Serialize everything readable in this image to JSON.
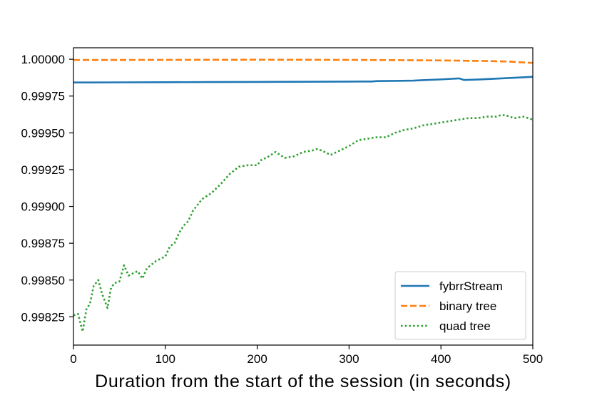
{
  "chart_data": {
    "type": "line",
    "xlabel": "Duration from the start of the session (in seconds)",
    "ylabel": "",
    "xlim": [
      0,
      500
    ],
    "ylim": [
      0.998058,
      1.000078
    ],
    "xticks": [
      0,
      100,
      200,
      300,
      400,
      500
    ],
    "xtick_labels": [
      "0",
      "100",
      "200",
      "300",
      "400",
      "500"
    ],
    "yticks": [
      0.99825,
      0.9985,
      0.99875,
      0.999,
      0.99925,
      0.9995,
      0.99975,
      1.0
    ],
    "ytick_labels": [
      "0.99825",
      "0.99850",
      "0.99875",
      "0.99900",
      "0.99925",
      "0.99950",
      "0.99975",
      "1.00000"
    ],
    "grid": false,
    "legend_position": "lower-right",
    "series": [
      {
        "name": "fybrrStream",
        "color": "#1f77b4",
        "style": "solid",
        "x": [
          0,
          50,
          100,
          150,
          200,
          250,
          300,
          325,
          330,
          350,
          370,
          380,
          400,
          420,
          425,
          440,
          460,
          480,
          500
        ],
        "y": [
          0.999842,
          0.999843,
          0.999844,
          0.999845,
          0.999846,
          0.999847,
          0.999848,
          0.999849,
          0.999852,
          0.999853,
          0.999855,
          0.999858,
          0.999863,
          0.99987,
          0.999859,
          0.999862,
          0.999868,
          0.999874,
          0.999881
        ]
      },
      {
        "name": "binary tree",
        "color": "#ff7f0e",
        "style": "dashed",
        "x": [
          0,
          100,
          200,
          300,
          400,
          450,
          470,
          480,
          490,
          500
        ],
        "y": [
          0.999995,
          0.999996,
          0.999997,
          0.999996,
          0.999992,
          0.999988,
          0.999985,
          0.999982,
          0.999978,
          0.999975
        ]
      },
      {
        "name": "quad tree",
        "color": "#2ca02c",
        "style": "dotted",
        "x": [
          0,
          5,
          10,
          14,
          18,
          22,
          27,
          31,
          37,
          41,
          45,
          50,
          55,
          60,
          66,
          70,
          75,
          80,
          90,
          100,
          105,
          110,
          115,
          120,
          125,
          130,
          140,
          150,
          160,
          170,
          180,
          190,
          200,
          205,
          210,
          220,
          225,
          230,
          240,
          250,
          260,
          265,
          270,
          280,
          290,
          300,
          310,
          320,
          330,
          340,
          350,
          360,
          370,
          380,
          390,
          400,
          410,
          420,
          430,
          440,
          450,
          460,
          465,
          470,
          480,
          490,
          500
        ],
        "y": [
          0.99826,
          0.99827,
          0.99815,
          0.9983,
          0.99834,
          0.99846,
          0.9985,
          0.99841,
          0.99831,
          0.99845,
          0.99848,
          0.99849,
          0.9986,
          0.99853,
          0.99855,
          0.99856,
          0.99851,
          0.99858,
          0.99863,
          0.99866,
          0.99873,
          0.99875,
          0.99882,
          0.99887,
          0.9989,
          0.99897,
          0.99905,
          0.99909,
          0.99915,
          0.99922,
          0.99927,
          0.99928,
          0.99928,
          0.99932,
          0.99933,
          0.99937,
          0.99935,
          0.99933,
          0.99934,
          0.99937,
          0.99938,
          0.99939,
          0.99938,
          0.99935,
          0.99938,
          0.99941,
          0.99945,
          0.99946,
          0.99947,
          0.99947,
          0.9995,
          0.99952,
          0.99953,
          0.99955,
          0.99956,
          0.99957,
          0.99958,
          0.99959,
          0.9996,
          0.9996,
          0.99961,
          0.99961,
          0.99962,
          0.99962,
          0.9996,
          0.99961,
          0.99959
        ]
      }
    ]
  }
}
